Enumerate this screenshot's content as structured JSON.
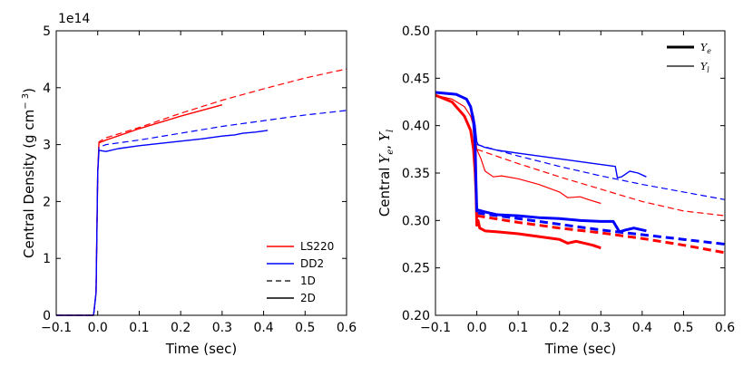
{
  "chart_data": [
    {
      "type": "line",
      "title": "",
      "xlabel": "Time (sec)",
      "ylabel": "Central Density (g cm",
      "ylabel_sup": "− 3",
      "ylabel_close": ")",
      "offset_text": "1e14",
      "xlim": [
        -0.1,
        0.6
      ],
      "ylim": [
        0,
        5
      ],
      "xticks": [
        -0.1,
        0.0,
        0.1,
        0.2,
        0.3,
        0.4,
        0.5,
        0.6
      ],
      "xtick_labels": [
        "−0.1",
        "0.0",
        "0.1",
        "0.2",
        "0.3",
        "0.4",
        "0.5",
        "0.6"
      ],
      "yticks": [
        0,
        1,
        2,
        3,
        4,
        5
      ],
      "ytick_labels": [
        "0",
        "1",
        "2",
        "3",
        "4",
        "5"
      ],
      "legend": {
        "position": "lower-right",
        "entries": [
          {
            "label": "LS220",
            "color": "#ff0000",
            "style": "solid"
          },
          {
            "label": "DD2",
            "color": "#0000ff",
            "style": "solid"
          },
          {
            "label": "1D",
            "color": "#000000",
            "style": "dashed"
          },
          {
            "label": "2D",
            "color": "#000000",
            "style": "solid"
          }
        ]
      },
      "series": [
        {
          "name": "LS220 1D",
          "color": "#ff0000",
          "style": "dashed",
          "width": 1.2,
          "x": [
            -0.1,
            -0.01,
            -0.004,
            0.0,
            0.003,
            0.02,
            0.1,
            0.2,
            0.3,
            0.4,
            0.5,
            0.6
          ],
          "y": [
            0,
            0,
            0.4,
            2.5,
            3.05,
            3.12,
            3.3,
            3.55,
            3.78,
            3.98,
            4.17,
            4.33
          ]
        },
        {
          "name": "LS220 2D",
          "color": "#ff0000",
          "style": "solid",
          "width": 1.4,
          "x": [
            -0.1,
            -0.01,
            -0.004,
            0.0,
            0.003,
            0.02,
            0.1,
            0.2,
            0.3
          ],
          "y": [
            0,
            0,
            0.4,
            2.5,
            3.03,
            3.08,
            3.28,
            3.5,
            3.7
          ]
        },
        {
          "name": "DD2 1D",
          "color": "#0000ff",
          "style": "dashed",
          "width": 1.2,
          "x": [
            -0.1,
            -0.01,
            -0.004,
            0.0,
            0.003,
            0.02,
            0.1,
            0.2,
            0.3,
            0.4,
            0.5,
            0.6
          ],
          "y": [
            0,
            0,
            0.4,
            2.5,
            2.95,
            3.0,
            3.08,
            3.2,
            3.32,
            3.42,
            3.52,
            3.6
          ]
        },
        {
          "name": "DD2 2D",
          "color": "#0000ff",
          "style": "solid",
          "width": 1.4,
          "x": [
            -0.1,
            -0.01,
            -0.004,
            0.0,
            0.003,
            0.02,
            0.05,
            0.1,
            0.15,
            0.2,
            0.25,
            0.3,
            0.33,
            0.35,
            0.38,
            0.41
          ],
          "y": [
            0,
            0,
            0.4,
            2.5,
            2.9,
            2.88,
            2.93,
            2.98,
            3.02,
            3.06,
            3.1,
            3.15,
            3.17,
            3.2,
            3.22,
            3.25
          ]
        }
      ]
    },
    {
      "type": "line",
      "title": "",
      "xlabel": "Time (sec)",
      "ylabel_text": "Central",
      "ylabel_var1": "Y",
      "ylabel_sub1": "e",
      "ylabel_sep": ",",
      "ylabel_var2": "Y",
      "ylabel_sub2": "l",
      "xlim": [
        -0.1,
        0.6
      ],
      "ylim": [
        0.2,
        0.5
      ],
      "xticks": [
        -0.1,
        0.0,
        0.1,
        0.2,
        0.3,
        0.4,
        0.5,
        0.6
      ],
      "xtick_labels": [
        "−0.1",
        "0.0",
        "0.1",
        "0.2",
        "0.3",
        "0.4",
        "0.5",
        "0.6"
      ],
      "yticks": [
        0.2,
        0.25,
        0.3,
        0.35,
        0.4,
        0.45,
        0.5
      ],
      "ytick_labels": [
        "0.20",
        "0.25",
        "0.30",
        "0.35",
        "0.40",
        "0.45",
        "0.50"
      ],
      "legend": {
        "position": "upper-right",
        "entries": [
          {
            "var": "Y",
            "sub": "e",
            "style": "thick"
          },
          {
            "var": "Y",
            "sub": "l",
            "style": "thin"
          }
        ]
      },
      "series": [
        {
          "name": "LS220 Ye 1D",
          "color": "#ff0000",
          "style": "dashed",
          "width": 3,
          "x": [
            0.0,
            0.1,
            0.2,
            0.3,
            0.4,
            0.5,
            0.6
          ],
          "y": [
            0.305,
            0.298,
            0.292,
            0.287,
            0.281,
            0.274,
            0.266
          ]
        },
        {
          "name": "LS220 Yl 1D",
          "color": "#ff0000",
          "style": "dashed",
          "width": 1.2,
          "x": [
            0.0,
            0.1,
            0.2,
            0.3,
            0.4,
            0.5,
            0.6
          ],
          "y": [
            0.375,
            0.36,
            0.346,
            0.333,
            0.32,
            0.31,
            0.305
          ]
        },
        {
          "name": "DD2 Ye 1D",
          "color": "#0000ff",
          "style": "dashed",
          "width": 3,
          "x": [
            0.0,
            0.1,
            0.2,
            0.3,
            0.4,
            0.5,
            0.6
          ],
          "y": [
            0.308,
            0.302,
            0.296,
            0.29,
            0.285,
            0.28,
            0.275
          ]
        },
        {
          "name": "DD2 Yl 1D",
          "color": "#0000ff",
          "style": "dashed",
          "width": 1.2,
          "x": [
            0.0,
            0.1,
            0.2,
            0.3,
            0.4,
            0.5,
            0.6
          ],
          "y": [
            0.38,
            0.368,
            0.357,
            0.347,
            0.338,
            0.33,
            0.322
          ]
        },
        {
          "name": "LS220 Ye 2D",
          "color": "#ff0000",
          "style": "solid",
          "width": 3,
          "x": [
            -0.1,
            -0.06,
            -0.03,
            -0.015,
            -0.008,
            -0.004,
            -0.002,
            0.0,
            0.003,
            0.007,
            0.02,
            0.05,
            0.1,
            0.15,
            0.2,
            0.22,
            0.24,
            0.26,
            0.28,
            0.3
          ],
          "y": [
            0.432,
            0.425,
            0.41,
            0.395,
            0.375,
            0.35,
            0.33,
            0.295,
            0.3,
            0.292,
            0.289,
            0.288,
            0.286,
            0.283,
            0.28,
            0.276,
            0.278,
            0.276,
            0.274,
            0.271
          ]
        },
        {
          "name": "LS220 Yl 2D",
          "color": "#ff0000",
          "style": "solid",
          "width": 1.2,
          "x": [
            -0.1,
            -0.06,
            -0.03,
            -0.015,
            -0.008,
            -0.004,
            0.0,
            0.01,
            0.02,
            0.04,
            0.06,
            0.1,
            0.15,
            0.2,
            0.22,
            0.25,
            0.27,
            0.3
          ],
          "y": [
            0.432,
            0.428,
            0.42,
            0.41,
            0.4,
            0.39,
            0.375,
            0.365,
            0.352,
            0.346,
            0.347,
            0.344,
            0.338,
            0.33,
            0.324,
            0.325,
            0.322,
            0.318
          ]
        },
        {
          "name": "DD2 Ye 2D",
          "color": "#0000ff",
          "style": "solid",
          "width": 3,
          "x": [
            -0.1,
            -0.05,
            -0.025,
            -0.015,
            -0.008,
            -0.004,
            -0.002,
            0.0,
            0.003,
            0.02,
            0.05,
            0.1,
            0.15,
            0.2,
            0.25,
            0.3,
            0.33,
            0.345,
            0.36,
            0.38,
            0.41
          ],
          "y": [
            0.435,
            0.433,
            0.428,
            0.42,
            0.405,
            0.38,
            0.34,
            0.31,
            0.311,
            0.309,
            0.306,
            0.305,
            0.303,
            0.302,
            0.3,
            0.299,
            0.299,
            0.288,
            0.29,
            0.292,
            0.289
          ]
        },
        {
          "name": "DD2 Yl 2D",
          "color": "#0000ff",
          "style": "solid",
          "width": 1.4,
          "x": [
            -0.1,
            -0.05,
            -0.025,
            -0.015,
            -0.008,
            -0.004,
            0.0,
            0.003,
            0.02,
            0.05,
            0.1,
            0.15,
            0.2,
            0.25,
            0.3,
            0.335,
            0.34,
            0.35,
            0.37,
            0.39,
            0.41
          ],
          "y": [
            0.435,
            0.433,
            0.428,
            0.42,
            0.41,
            0.4,
            0.383,
            0.38,
            0.377,
            0.374,
            0.371,
            0.368,
            0.365,
            0.362,
            0.359,
            0.357,
            0.345,
            0.346,
            0.352,
            0.35,
            0.346
          ]
        }
      ]
    }
  ]
}
